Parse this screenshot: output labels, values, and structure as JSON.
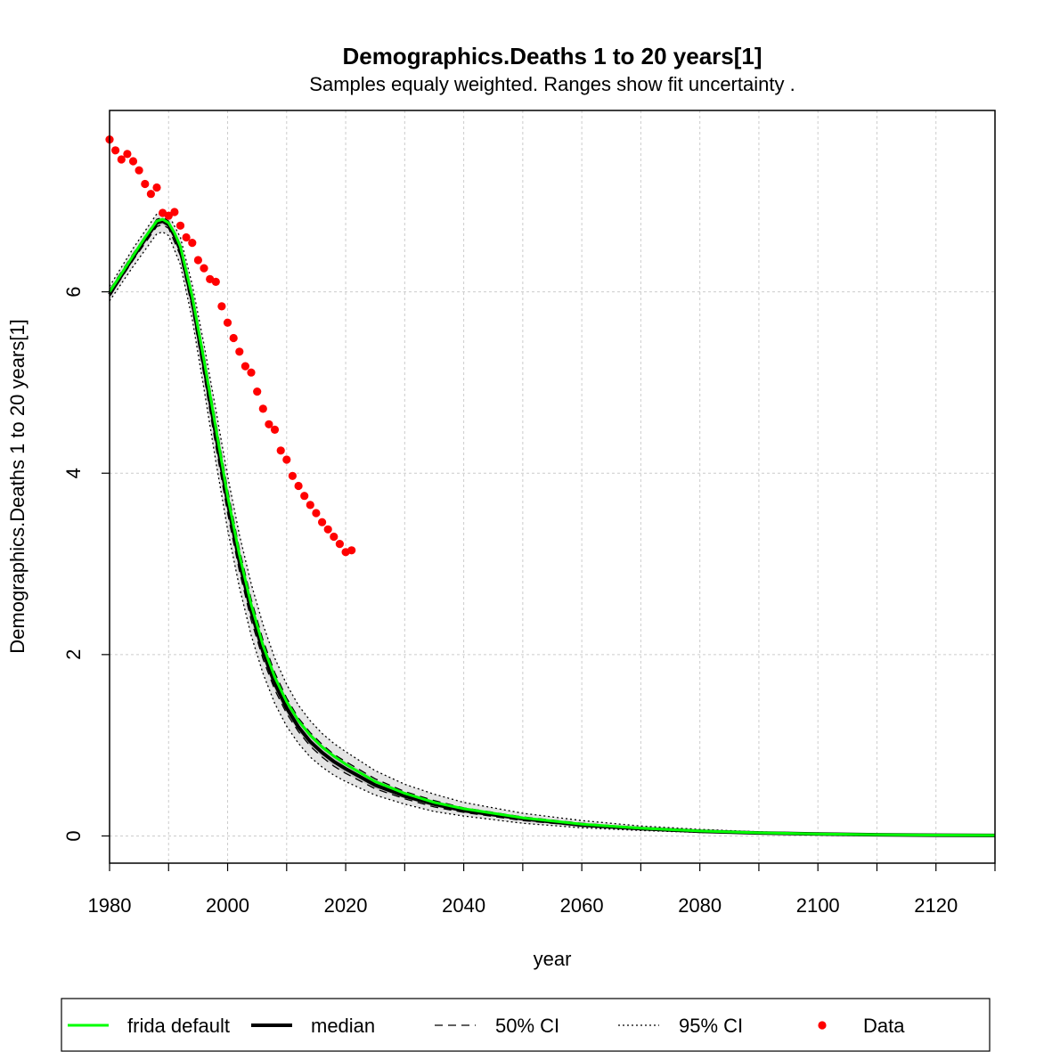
{
  "chart_data": {
    "type": "line",
    "title": "Demographics.Deaths 1 to 20 years[1]",
    "subtitle": "Samples equaly weighted. Ranges show  fit uncertainty .",
    "xlabel": "year",
    "ylabel": "Demographics.Deaths 1 to 20 years[1]",
    "xlim": [
      1980,
      2130
    ],
    "ylim": [
      -0.3,
      8.0
    ],
    "x_ticks": [
      1980,
      2000,
      2020,
      2040,
      2060,
      2080,
      2100,
      2120
    ],
    "y_ticks": [
      0,
      2,
      4,
      6
    ],
    "grid": true,
    "legend_position": "bottom",
    "legend": [
      {
        "name": "frida default",
        "style": "line",
        "color": "#00ff00"
      },
      {
        "name": "median",
        "style": "line",
        "color": "#000000"
      },
      {
        "name": "50% CI",
        "style": "dashed",
        "color": "#000000"
      },
      {
        "name": "95% CI",
        "style": "dotted",
        "color": "#000000"
      },
      {
        "name": "Data",
        "style": "point",
        "color": "#ff0000"
      }
    ],
    "series": [
      {
        "name": "frida default",
        "color": "#00ff00",
        "x": [
          1980,
          1982,
          1984,
          1986,
          1988,
          1989,
          1990,
          1991,
          1992,
          1994,
          1996,
          1998,
          2000,
          2002,
          2004,
          2006,
          2008,
          2010,
          2012,
          2014,
          2016,
          2018,
          2020,
          2025,
          2030,
          2035,
          2040,
          2050,
          2060,
          2070,
          2080,
          2090,
          2100,
          2110,
          2120,
          2130
        ],
        "y": [
          6.0,
          6.2,
          6.4,
          6.6,
          6.78,
          6.8,
          6.76,
          6.65,
          6.5,
          5.95,
          5.25,
          4.5,
          3.75,
          3.1,
          2.55,
          2.1,
          1.75,
          1.48,
          1.27,
          1.11,
          0.98,
          0.88,
          0.79,
          0.6,
          0.47,
          0.37,
          0.3,
          0.2,
          0.13,
          0.085,
          0.055,
          0.035,
          0.022,
          0.014,
          0.009,
          0.006
        ]
      },
      {
        "name": "median",
        "color": "#000000",
        "x": [
          1980,
          1982,
          1984,
          1986,
          1988,
          1989,
          1990,
          1991,
          1992,
          1994,
          1996,
          1998,
          2000,
          2002,
          2004,
          2006,
          2008,
          2010,
          2012,
          2014,
          2016,
          2018,
          2020,
          2025,
          2030,
          2035,
          2040,
          2050,
          2060,
          2070,
          2080,
          2090,
          2100,
          2110,
          2120,
          2130
        ],
        "y": [
          5.97,
          6.18,
          6.38,
          6.58,
          6.76,
          6.78,
          6.74,
          6.62,
          6.46,
          5.9,
          5.18,
          4.42,
          3.68,
          3.02,
          2.48,
          2.03,
          1.68,
          1.41,
          1.2,
          1.04,
          0.92,
          0.82,
          0.74,
          0.56,
          0.44,
          0.35,
          0.28,
          0.19,
          0.12,
          0.08,
          0.052,
          0.033,
          0.021,
          0.013,
          0.008,
          0.005
        ]
      },
      {
        "name": "50% CI upper",
        "color": "#000000",
        "x": [
          1980,
          1984,
          1988,
          1989,
          1990,
          1992,
          1994,
          1996,
          1998,
          2000,
          2002,
          2004,
          2006,
          2008,
          2010,
          2012,
          2014,
          2016,
          2018,
          2020,
          2025,
          2030,
          2035,
          2040,
          2050,
          2060,
          2070,
          2080,
          2090,
          2100,
          2110,
          2120,
          2130
        ],
        "y": [
          6.02,
          6.42,
          6.8,
          6.82,
          6.78,
          6.52,
          5.98,
          5.3,
          4.56,
          3.82,
          3.16,
          2.61,
          2.16,
          1.8,
          1.52,
          1.3,
          1.14,
          1.01,
          0.9,
          0.82,
          0.63,
          0.49,
          0.39,
          0.31,
          0.21,
          0.14,
          0.09,
          0.058,
          0.037,
          0.023,
          0.015,
          0.009,
          0.006
        ]
      },
      {
        "name": "50% CI lower",
        "color": "#000000",
        "x": [
          1980,
          1984,
          1988,
          1989,
          1990,
          1992,
          1994,
          1996,
          1998,
          2000,
          2002,
          2004,
          2006,
          2008,
          2010,
          2012,
          2014,
          2016,
          2018,
          2020,
          2025,
          2030,
          2035,
          2040,
          2050,
          2060,
          2070,
          2080,
          2090,
          2100,
          2110,
          2120,
          2130
        ],
        "y": [
          5.95,
          6.35,
          6.72,
          6.74,
          6.7,
          6.4,
          5.82,
          5.08,
          4.3,
          3.56,
          2.92,
          2.38,
          1.95,
          1.61,
          1.35,
          1.15,
          0.99,
          0.87,
          0.77,
          0.69,
          0.52,
          0.41,
          0.32,
          0.26,
          0.17,
          0.11,
          0.072,
          0.047,
          0.03,
          0.019,
          0.012,
          0.008,
          0.005
        ]
      },
      {
        "name": "95% CI upper",
        "color": "#000000",
        "x": [
          1980,
          1984,
          1988,
          1989,
          1990,
          1992,
          1994,
          1996,
          1998,
          2000,
          2002,
          2004,
          2006,
          2008,
          2010,
          2012,
          2014,
          2016,
          2018,
          2020,
          2025,
          2030,
          2035,
          2040,
          2050,
          2060,
          2070,
          2080,
          2090,
          2100,
          2110,
          2120,
          2130
        ],
        "y": [
          6.06,
          6.48,
          6.86,
          6.88,
          6.85,
          6.6,
          6.08,
          5.42,
          4.7,
          3.97,
          3.32,
          2.78,
          2.33,
          1.96,
          1.67,
          1.44,
          1.27,
          1.13,
          1.02,
          0.93,
          0.72,
          0.57,
          0.46,
          0.37,
          0.25,
          0.17,
          0.11,
          0.072,
          0.046,
          0.03,
          0.019,
          0.012,
          0.008
        ]
      },
      {
        "name": "95% CI lower",
        "color": "#000000",
        "x": [
          1980,
          1984,
          1988,
          1989,
          1990,
          1992,
          1994,
          1996,
          1998,
          2000,
          2002,
          2004,
          2006,
          2008,
          2010,
          2012,
          2014,
          2016,
          2018,
          2020,
          2025,
          2030,
          2035,
          2040,
          2050,
          2060,
          2070,
          2080,
          2090,
          2100,
          2110,
          2120,
          2130
        ],
        "y": [
          5.9,
          6.28,
          6.64,
          6.66,
          6.62,
          6.3,
          5.7,
          4.93,
          4.13,
          3.38,
          2.74,
          2.21,
          1.79,
          1.46,
          1.21,
          1.02,
          0.87,
          0.76,
          0.67,
          0.6,
          0.45,
          0.35,
          0.27,
          0.22,
          0.14,
          0.09,
          0.06,
          0.039,
          0.025,
          0.016,
          0.01,
          0.006,
          0.004
        ]
      },
      {
        "name": "Data",
        "color": "#ff0000",
        "x": [
          1980,
          1981,
          1982,
          1983,
          1984,
          1985,
          1986,
          1987,
          1988,
          1989,
          1990,
          1991,
          1992,
          1993,
          1994,
          1995,
          1996,
          1997,
          1998,
          1999,
          2000,
          2001,
          2002,
          2003,
          2004,
          2005,
          2006,
          2007,
          2008,
          2009,
          2010,
          2011,
          2012,
          2013,
          2014,
          2015,
          2016,
          2017,
          2018,
          2019,
          2020,
          2021
        ],
        "y": [
          7.68,
          7.56,
          7.46,
          7.52,
          7.44,
          7.34,
          7.19,
          7.08,
          7.15,
          6.87,
          6.84,
          6.88,
          6.73,
          6.6,
          6.54,
          6.35,
          6.26,
          6.14,
          6.11,
          5.84,
          5.66,
          5.49,
          5.34,
          5.18,
          5.11,
          4.9,
          4.71,
          4.54,
          4.48,
          4.25,
          4.15,
          3.97,
          3.86,
          3.75,
          3.65,
          3.56,
          3.46,
          3.38,
          3.3,
          3.22,
          3.13,
          3.15
        ]
      }
    ]
  }
}
